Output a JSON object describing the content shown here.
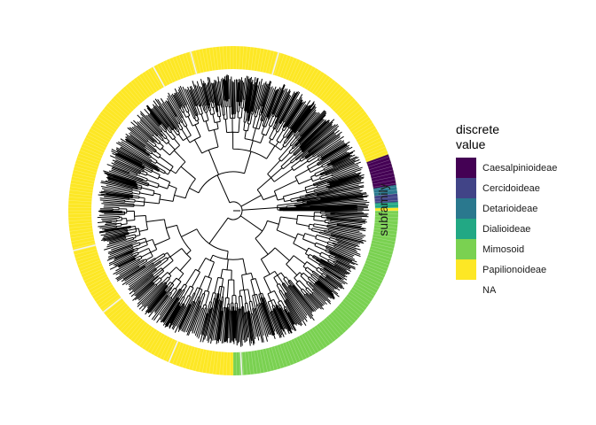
{
  "figure": {
    "ring_label": "subfamily",
    "ring_gap_colors": [
      "#f2f2f2"
    ]
  },
  "legend": {
    "title_line1": "discrete",
    "title_line2": "value",
    "items": [
      {
        "label": "Caesalpinioideae",
        "color": "#440154"
      },
      {
        "label": "Cercidoideae",
        "color": "#414487"
      },
      {
        "label": "Detarioideae",
        "color": "#2a788e"
      },
      {
        "label": "Dialioideae",
        "color": "#22a884"
      },
      {
        "label": "Mimosoid",
        "color": "#7ad151"
      },
      {
        "label": "Papilionoideae",
        "color": "#fde725"
      },
      {
        "label": "NA",
        "color": "#ffffff"
      }
    ]
  },
  "chart_data": {
    "type": "circular-phylogenetic-tree",
    "ring_variable": "subfamily",
    "legend_title": "discrete value",
    "ring_segments": [
      {
        "category": "Mimosoid",
        "start_deg": -25,
        "end_deg": 90
      },
      {
        "category": "Papilionoideae",
        "start_deg": 90,
        "end_deg": 340
      },
      {
        "category": "Caesalpinioideae",
        "start_deg": 340,
        "end_deg": 351
      },
      {
        "category": "Detarioideae",
        "start_deg": 351,
        "end_deg": 354
      },
      {
        "category": "Cercidoideae",
        "start_deg": 354,
        "end_deg": 357
      },
      {
        "category": "Dialioideae",
        "start_deg": 357,
        "end_deg": 359
      },
      {
        "category": "Papilionoideae",
        "start_deg": 359,
        "end_deg": 360
      }
    ]
  }
}
